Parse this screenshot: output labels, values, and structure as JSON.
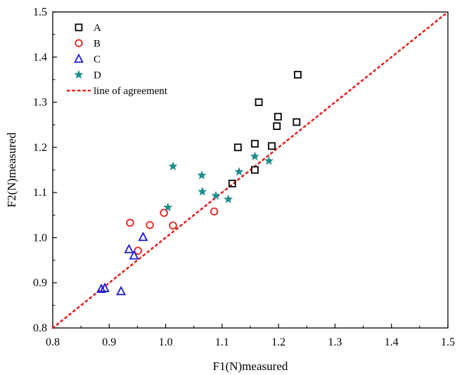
{
  "chart_data": {
    "type": "scatter",
    "xlabel": "F1(N)measured",
    "ylabel": "F2(N)measured",
    "xlim": [
      0.8,
      1.5
    ],
    "ylim": [
      0.8,
      1.5
    ],
    "xticks": [
      "0.8",
      "0.9",
      "1.0",
      "1.1",
      "1.2",
      "1.3",
      "1.4",
      "1.5"
    ],
    "yticks": [
      "0.8",
      "0.9",
      "1.0",
      "1.1",
      "1.2",
      "1.3",
      "1.4",
      "1.5"
    ],
    "grid": false,
    "legend_position": "top-left",
    "series": [
      {
        "name": "A",
        "marker": "square",
        "color": "#000000",
        "points": [
          [
            1.118,
            1.12
          ],
          [
            1.128,
            1.2
          ],
          [
            1.158,
            1.208
          ],
          [
            1.158,
            1.15
          ],
          [
            1.165,
            1.3
          ],
          [
            1.188,
            1.203
          ],
          [
            1.197,
            1.247
          ],
          [
            1.199,
            1.268
          ],
          [
            1.232,
            1.256
          ],
          [
            1.234,
            1.361
          ]
        ]
      },
      {
        "name": "B",
        "marker": "circle",
        "color": "#e8201e",
        "points": [
          [
            0.937,
            1.033
          ],
          [
            0.951,
            0.971
          ],
          [
            0.972,
            1.028
          ],
          [
            0.997,
            1.055
          ],
          [
            1.013,
            1.027
          ],
          [
            1.086,
            1.058
          ]
        ]
      },
      {
        "name": "C",
        "marker": "triangle",
        "color": "#1a1adf",
        "points": [
          [
            0.886,
            0.886
          ],
          [
            0.892,
            0.888
          ],
          [
            0.921,
            0.881
          ],
          [
            0.935,
            0.974
          ],
          [
            0.944,
            0.96
          ],
          [
            0.96,
            1.001
          ]
        ]
      },
      {
        "name": "D",
        "marker": "star",
        "color": "#1e8c8c",
        "points": [
          [
            1.004,
            1.067
          ],
          [
            1.013,
            1.158
          ],
          [
            1.064,
            1.138
          ],
          [
            1.065,
            1.102
          ],
          [
            1.089,
            1.093
          ],
          [
            1.111,
            1.085
          ],
          [
            1.13,
            1.146
          ],
          [
            1.158,
            1.18
          ],
          [
            1.183,
            1.17
          ]
        ]
      }
    ],
    "reference_line": {
      "name": "line of agreement",
      "style": "dotted",
      "color": "#e8201e",
      "from": [
        0.8,
        0.8
      ],
      "to": [
        1.5,
        1.5
      ]
    }
  }
}
